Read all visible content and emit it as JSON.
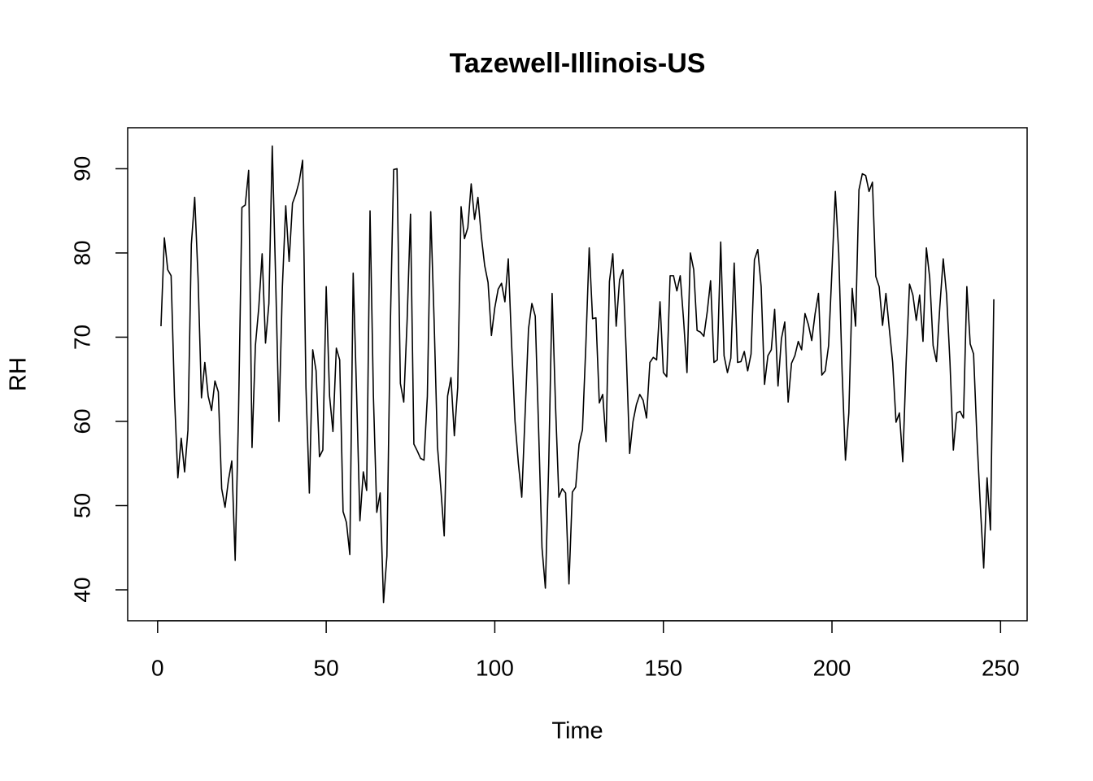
{
  "chart_data": {
    "type": "line",
    "title": "Tazewell-Illinois-US",
    "xlabel": "Time",
    "ylabel": "RH",
    "xlim": [
      -8.88,
      257.88
    ],
    "ylim": [
      36.33,
      94.87
    ],
    "xticks": [
      0,
      50,
      100,
      150,
      200,
      250
    ],
    "yticks": [
      40,
      50,
      60,
      70,
      80,
      90
    ],
    "x": [
      1,
      2,
      3,
      4,
      5,
      6,
      7,
      8,
      9,
      10,
      11,
      12,
      13,
      14,
      15,
      16,
      17,
      18,
      19,
      20,
      21,
      22,
      23,
      24,
      25,
      26,
      27,
      28,
      29,
      30,
      31,
      32,
      33,
      34,
      35,
      36,
      37,
      38,
      39,
      40,
      41,
      42,
      43,
      44,
      45,
      46,
      47,
      48,
      49,
      50,
      51,
      52,
      53,
      54,
      55,
      56,
      57,
      58,
      59,
      60,
      61,
      62,
      63,
      64,
      65,
      66,
      67,
      68,
      69,
      70,
      71,
      72,
      73,
      74,
      75,
      76,
      77,
      78,
      79,
      80,
      81,
      82,
      83,
      84,
      85,
      86,
      87,
      88,
      89,
      90,
      91,
      92,
      93,
      94,
      95,
      96,
      97,
      98,
      99,
      100,
      101,
      102,
      103,
      104,
      105,
      106,
      107,
      108,
      109,
      110,
      111,
      112,
      113,
      114,
      115,
      116,
      117,
      118,
      119,
      120,
      121,
      122,
      123,
      124,
      125,
      126,
      127,
      128,
      129,
      130,
      131,
      132,
      133,
      134,
      135,
      136,
      137,
      138,
      139,
      140,
      141,
      142,
      143,
      144,
      145,
      146,
      147,
      148,
      149,
      150,
      151,
      152,
      153,
      154,
      155,
      156,
      157,
      158,
      159,
      160,
      161,
      162,
      163,
      164,
      165,
      166,
      167,
      168,
      169,
      170,
      171,
      172,
      173,
      174,
      175,
      176,
      177,
      178,
      179,
      180,
      181,
      182,
      183,
      184,
      185,
      186,
      187,
      188,
      189,
      190,
      191,
      192,
      193,
      194,
      195,
      196,
      197,
      198,
      199,
      200,
      201,
      202,
      203,
      204,
      205,
      206,
      207,
      208,
      209,
      210,
      211,
      212,
      213,
      214,
      215,
      216,
      217,
      218,
      219,
      220,
      221,
      222,
      223,
      224,
      225,
      226,
      227,
      228,
      229,
      230,
      231,
      232,
      233,
      234,
      235,
      236,
      237,
      238,
      239,
      240,
      241,
      242,
      243,
      244,
      245,
      246,
      247,
      248
    ],
    "series": [
      {
        "color": "#000000",
        "values": [
          71.3,
          81.8,
          78,
          77.3,
          63,
          53.3,
          58,
          54,
          59,
          81,
          86.6,
          77,
          62.8,
          67,
          63,
          61.3,
          64.8,
          63.5,
          52,
          49.8,
          53,
          55.3,
          43.5,
          61,
          85.4,
          85.7,
          89.8,
          56.9,
          69,
          73.5,
          79.9,
          69.3,
          74,
          92.7,
          77,
          60,
          76,
          85.6,
          79,
          85.9,
          87,
          88.5,
          91,
          64,
          51.5,
          68.5,
          66,
          55.8,
          56.6,
          76,
          63,
          58.8,
          68.7,
          67.3,
          49.3,
          48,
          44.2,
          77.6,
          63.5,
          48.2,
          54,
          51.8,
          85,
          63,
          49.2,
          51.5,
          38.5,
          44,
          71,
          89.9,
          90,
          64.5,
          62.3,
          72,
          84.6,
          57.3,
          56.5,
          55.6,
          55.4,
          63,
          84.9,
          72,
          57,
          52,
          46.4,
          63,
          65.2,
          58.3,
          64,
          85.5,
          81.7,
          83,
          88.2,
          84,
          86.6,
          82,
          78.5,
          76.5,
          70.2,
          73.5,
          75.7,
          76.4,
          74.2,
          79.3,
          69,
          60,
          55,
          51,
          61,
          71,
          74,
          72.5,
          59,
          45,
          40.2,
          55,
          75.2,
          62,
          51,
          52,
          51.5,
          40.7,
          51.6,
          52.2,
          57.3,
          59,
          69,
          80.6,
          72.2,
          72.3,
          62.2,
          63.2,
          57.6,
          76.6,
          79.9,
          71.3,
          76.8,
          78,
          68,
          56.2,
          60,
          62,
          63.2,
          62.5,
          60.4,
          67,
          67.6,
          67.3,
          74.2,
          65.8,
          65.3,
          77.3,
          77.3,
          75.5,
          77.3,
          72,
          65.8,
          80,
          78,
          70.8,
          70.6,
          70.1,
          73,
          76.7,
          67,
          67.3,
          81.3,
          67.8,
          65.8,
          67.5,
          78.8,
          67,
          67.1,
          68.3,
          66,
          68,
          79.2,
          80.4,
          76,
          64.4,
          67.8,
          68.5,
          73.3,
          64.2,
          69.8,
          71.8,
          62.3,
          66.9,
          67.8,
          69.5,
          68.5,
          72.8,
          71.5,
          69.6,
          72.8,
          75.2,
          65.5,
          66,
          69,
          78,
          87.3,
          80,
          66,
          55.4,
          61,
          75.8,
          71.3,
          87.5,
          89.4,
          89.2,
          87.3,
          88.4,
          77.2,
          76,
          71.4,
          75.2,
          71,
          67,
          59.9,
          61,
          55.2,
          67,
          76.3,
          75,
          72,
          75,
          69.5,
          80.6,
          77,
          69,
          67.1,
          73.7,
          79.3,
          75,
          67,
          56.6,
          61,
          61.2,
          60.4,
          76,
          69.2,
          68,
          58,
          50,
          42.6,
          53.3,
          47.1,
          74.5
        ]
      }
    ]
  }
}
